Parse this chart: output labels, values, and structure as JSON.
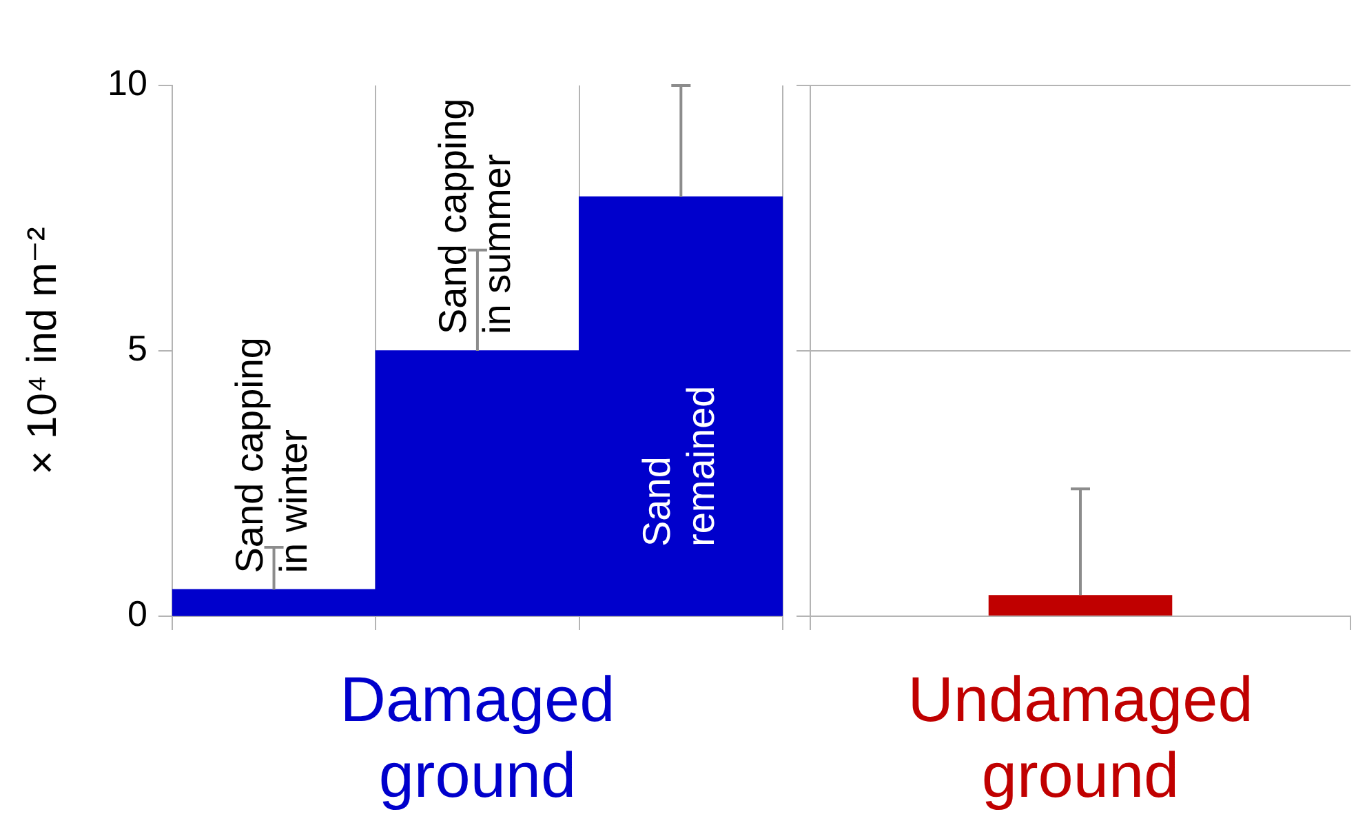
{
  "chart_data": [
    {
      "type": "bar",
      "ylabel": "× 10⁴ ind m⁻²",
      "xlabel": "Damaged ground",
      "categories": [
        "Sand capping in winter",
        "Sand capping in summer",
        "Sand remained"
      ],
      "series": [
        {
          "color": "#0000cc",
          "values": [
            0.5,
            5.0,
            7.9
          ],
          "errors": [
            [
              0.5,
              1.3
            ],
            [
              5.0,
              6.9
            ],
            [
              7.9,
              10.0
            ]
          ]
        }
      ],
      "ylim": [
        0,
        10
      ],
      "yticks": [
        0,
        5,
        10
      ]
    },
    {
      "type": "bar",
      "xlabel": "Undamaged ground",
      "categories": [
        null
      ],
      "series": [
        {
          "color": "#c00000",
          "values": [
            0.4
          ],
          "errors": [
            [
              0.4,
              2.4
            ]
          ]
        }
      ],
      "ylim": [
        0,
        10
      ],
      "yticks": [
        0,
        5,
        10
      ],
      "grid": "y",
      "tick_labels": false
    }
  ]
}
